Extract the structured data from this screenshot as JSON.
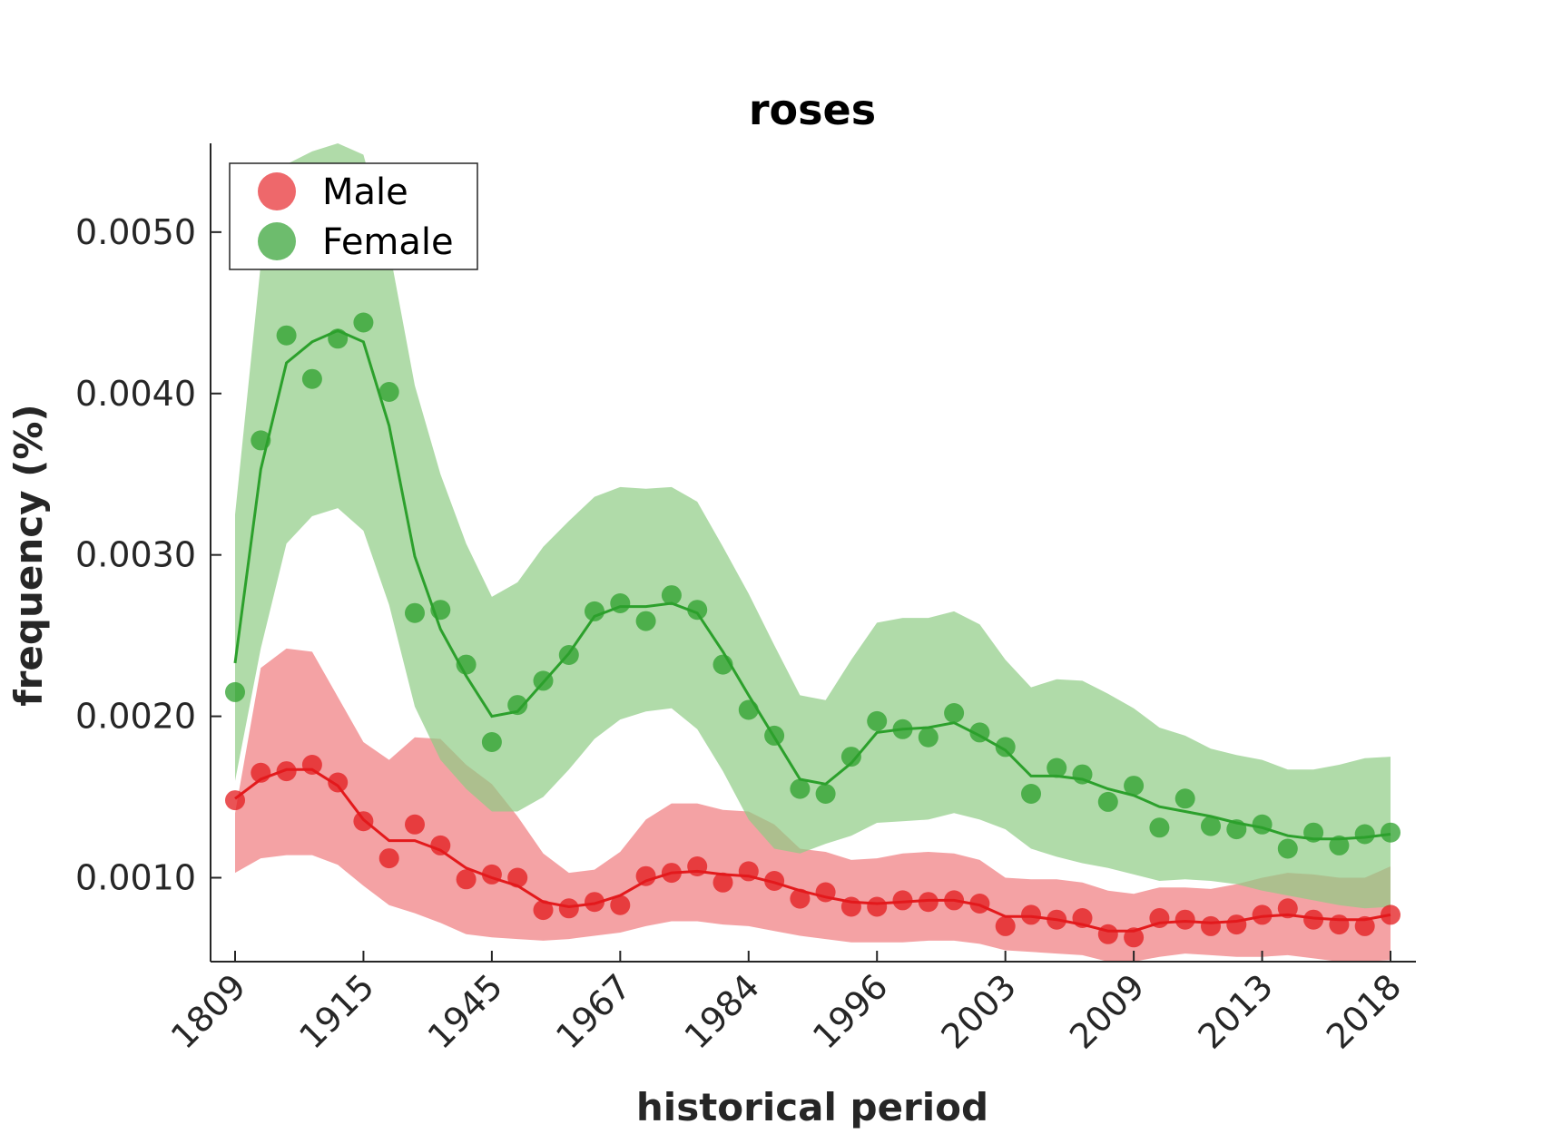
{
  "chart_data": {
    "type": "line",
    "title": "roses",
    "xlabel": "historical period",
    "ylabel": "frequency (%)",
    "x_tick_labels": [
      "1809",
      "1915",
      "1945",
      "1967",
      "1984",
      "1996",
      "2003",
      "2009",
      "2013",
      "2018"
    ],
    "y_ticks": [
      0.001,
      0.002,
      0.003,
      0.004,
      0.005
    ],
    "y_tick_labels": [
      "0.0010",
      "0.0020",
      "0.0030",
      "0.0040",
      "0.0050"
    ],
    "ylim": [
      0.00048,
      0.00555
    ],
    "n_points": 46,
    "legend": {
      "placement": "top-left",
      "entries": [
        {
          "label": "Male",
          "color": "#e8353a"
        },
        {
          "label": "Female",
          "color": "#3ca63c"
        }
      ]
    },
    "series": [
      {
        "name": "Male",
        "color": "#e31a1c",
        "band_color": "#ef7b7d",
        "points": [
          0.00148,
          0.00165,
          0.00166,
          0.0017,
          0.00159,
          0.00135,
          0.00112,
          0.00133,
          0.0012,
          0.00099,
          0.00102,
          0.001,
          0.0008,
          0.00081,
          0.00085,
          0.00083,
          0.00101,
          0.00103,
          0.00107,
          0.00097,
          0.00104,
          0.00098,
          0.00087,
          0.00091,
          0.00082,
          0.00082,
          0.00086,
          0.00085,
          0.00086,
          0.00084,
          0.0007,
          0.00077,
          0.00074,
          0.00075,
          0.00065,
          0.00063,
          0.00075,
          0.00074,
          0.0007,
          0.00071,
          0.00077,
          0.00081,
          0.00074,
          0.00071,
          0.0007,
          0.00077
        ],
        "smooth": [
          0.00149,
          0.00161,
          0.00167,
          0.00167,
          0.00157,
          0.00136,
          0.00123,
          0.00123,
          0.00117,
          0.00106,
          0.001,
          0.00095,
          0.00085,
          0.00082,
          0.00084,
          0.00089,
          0.00098,
          0.00103,
          0.00104,
          0.00102,
          0.00101,
          0.00097,
          0.00092,
          0.00088,
          0.00085,
          0.00084,
          0.00085,
          0.00086,
          0.00086,
          0.00083,
          0.00076,
          0.00076,
          0.00074,
          0.00071,
          0.00067,
          0.00067,
          0.00072,
          0.00073,
          0.00072,
          0.00073,
          0.00076,
          0.00077,
          0.00075,
          0.00074,
          0.00074,
          0.00077
        ],
        "upper": [
          0.0014,
          0.0023,
          0.00242,
          0.0024,
          0.00212,
          0.00184,
          0.00173,
          0.00187,
          0.00186,
          0.0017,
          0.00158,
          0.00138,
          0.00115,
          0.00103,
          0.00105,
          0.00116,
          0.00136,
          0.00146,
          0.00146,
          0.00142,
          0.00141,
          0.00133,
          0.00118,
          0.00116,
          0.00111,
          0.00112,
          0.00115,
          0.00116,
          0.00115,
          0.00111,
          0.001,
          0.00099,
          0.00099,
          0.00097,
          0.00092,
          0.0009,
          0.00094,
          0.00094,
          0.00093,
          0.00096,
          0.001,
          0.00103,
          0.00102,
          0.001,
          0.001,
          0.00107
        ],
        "lower": [
          0.00103,
          0.00112,
          0.00114,
          0.00114,
          0.00108,
          0.00095,
          0.00083,
          0.00078,
          0.00072,
          0.00065,
          0.00063,
          0.00062,
          0.00061,
          0.00062,
          0.00064,
          0.00066,
          0.0007,
          0.00073,
          0.00073,
          0.00071,
          0.0007,
          0.00067,
          0.00064,
          0.00062,
          0.0006,
          0.0006,
          0.0006,
          0.00061,
          0.00061,
          0.00059,
          0.00055,
          0.00054,
          0.00053,
          0.00052,
          0.00048,
          0.00047,
          0.00051,
          0.00053,
          0.00052,
          0.00051,
          0.00051,
          0.00052,
          0.0005,
          0.00048,
          0.00048,
          0.00049
        ]
      },
      {
        "name": "Female",
        "color": "#2ca02c",
        "band_color": "#8fcc85",
        "points": [
          0.00215,
          0.00371,
          0.00436,
          0.00409,
          0.00434,
          0.00444,
          0.00401,
          0.00264,
          0.00266,
          0.00232,
          0.00184,
          0.00207,
          0.00222,
          0.00238,
          0.00265,
          0.0027,
          0.00259,
          0.00275,
          0.00266,
          0.00232,
          0.00204,
          0.00188,
          0.00155,
          0.00152,
          0.00175,
          0.00197,
          0.00192,
          0.00187,
          0.00202,
          0.0019,
          0.00181,
          0.00152,
          0.00168,
          0.00164,
          0.00147,
          0.00157,
          0.00131,
          0.00149,
          0.00132,
          0.0013,
          0.00133,
          0.00118,
          0.00128,
          0.0012,
          0.00127,
          0.00128
        ],
        "smooth": [
          0.00233,
          0.00353,
          0.00419,
          0.00432,
          0.00439,
          0.00432,
          0.0038,
          0.00299,
          0.00254,
          0.00225,
          0.002,
          0.00203,
          0.00221,
          0.00239,
          0.00262,
          0.00268,
          0.00268,
          0.0027,
          0.00264,
          0.0024,
          0.00213,
          0.00187,
          0.00161,
          0.00158,
          0.00171,
          0.0019,
          0.00192,
          0.00193,
          0.00196,
          0.00188,
          0.00179,
          0.00163,
          0.00163,
          0.00161,
          0.00155,
          0.00151,
          0.00144,
          0.00141,
          0.00138,
          0.00134,
          0.00131,
          0.00126,
          0.00124,
          0.00124,
          0.00125,
          0.00127
        ],
        "upper": [
          0.00325,
          0.0048,
          0.00542,
          0.0055,
          0.00555,
          0.00548,
          0.0049,
          0.00405,
          0.0035,
          0.00307,
          0.00274,
          0.00283,
          0.00305,
          0.00321,
          0.00336,
          0.00342,
          0.00341,
          0.00342,
          0.00333,
          0.00305,
          0.00276,
          0.00244,
          0.00213,
          0.0021,
          0.00235,
          0.00258,
          0.00261,
          0.00261,
          0.00265,
          0.00257,
          0.00235,
          0.00218,
          0.00223,
          0.00222,
          0.00214,
          0.00205,
          0.00193,
          0.00188,
          0.0018,
          0.00176,
          0.00173,
          0.00167,
          0.00167,
          0.0017,
          0.00174,
          0.00175
        ],
        "lower": [
          0.0016,
          0.00242,
          0.00307,
          0.00324,
          0.00329,
          0.00315,
          0.00269,
          0.00206,
          0.00173,
          0.00155,
          0.00141,
          0.00141,
          0.0015,
          0.00167,
          0.00186,
          0.00198,
          0.00203,
          0.00205,
          0.00192,
          0.00166,
          0.00136,
          0.00118,
          0.00115,
          0.00121,
          0.00126,
          0.00134,
          0.00135,
          0.00136,
          0.0014,
          0.00136,
          0.0013,
          0.00118,
          0.00113,
          0.00109,
          0.00106,
          0.00102,
          0.00098,
          0.00099,
          0.00098,
          0.00096,
          0.00092,
          0.00089,
          0.00086,
          0.00083,
          0.00081,
          0.00082
        ]
      }
    ]
  }
}
